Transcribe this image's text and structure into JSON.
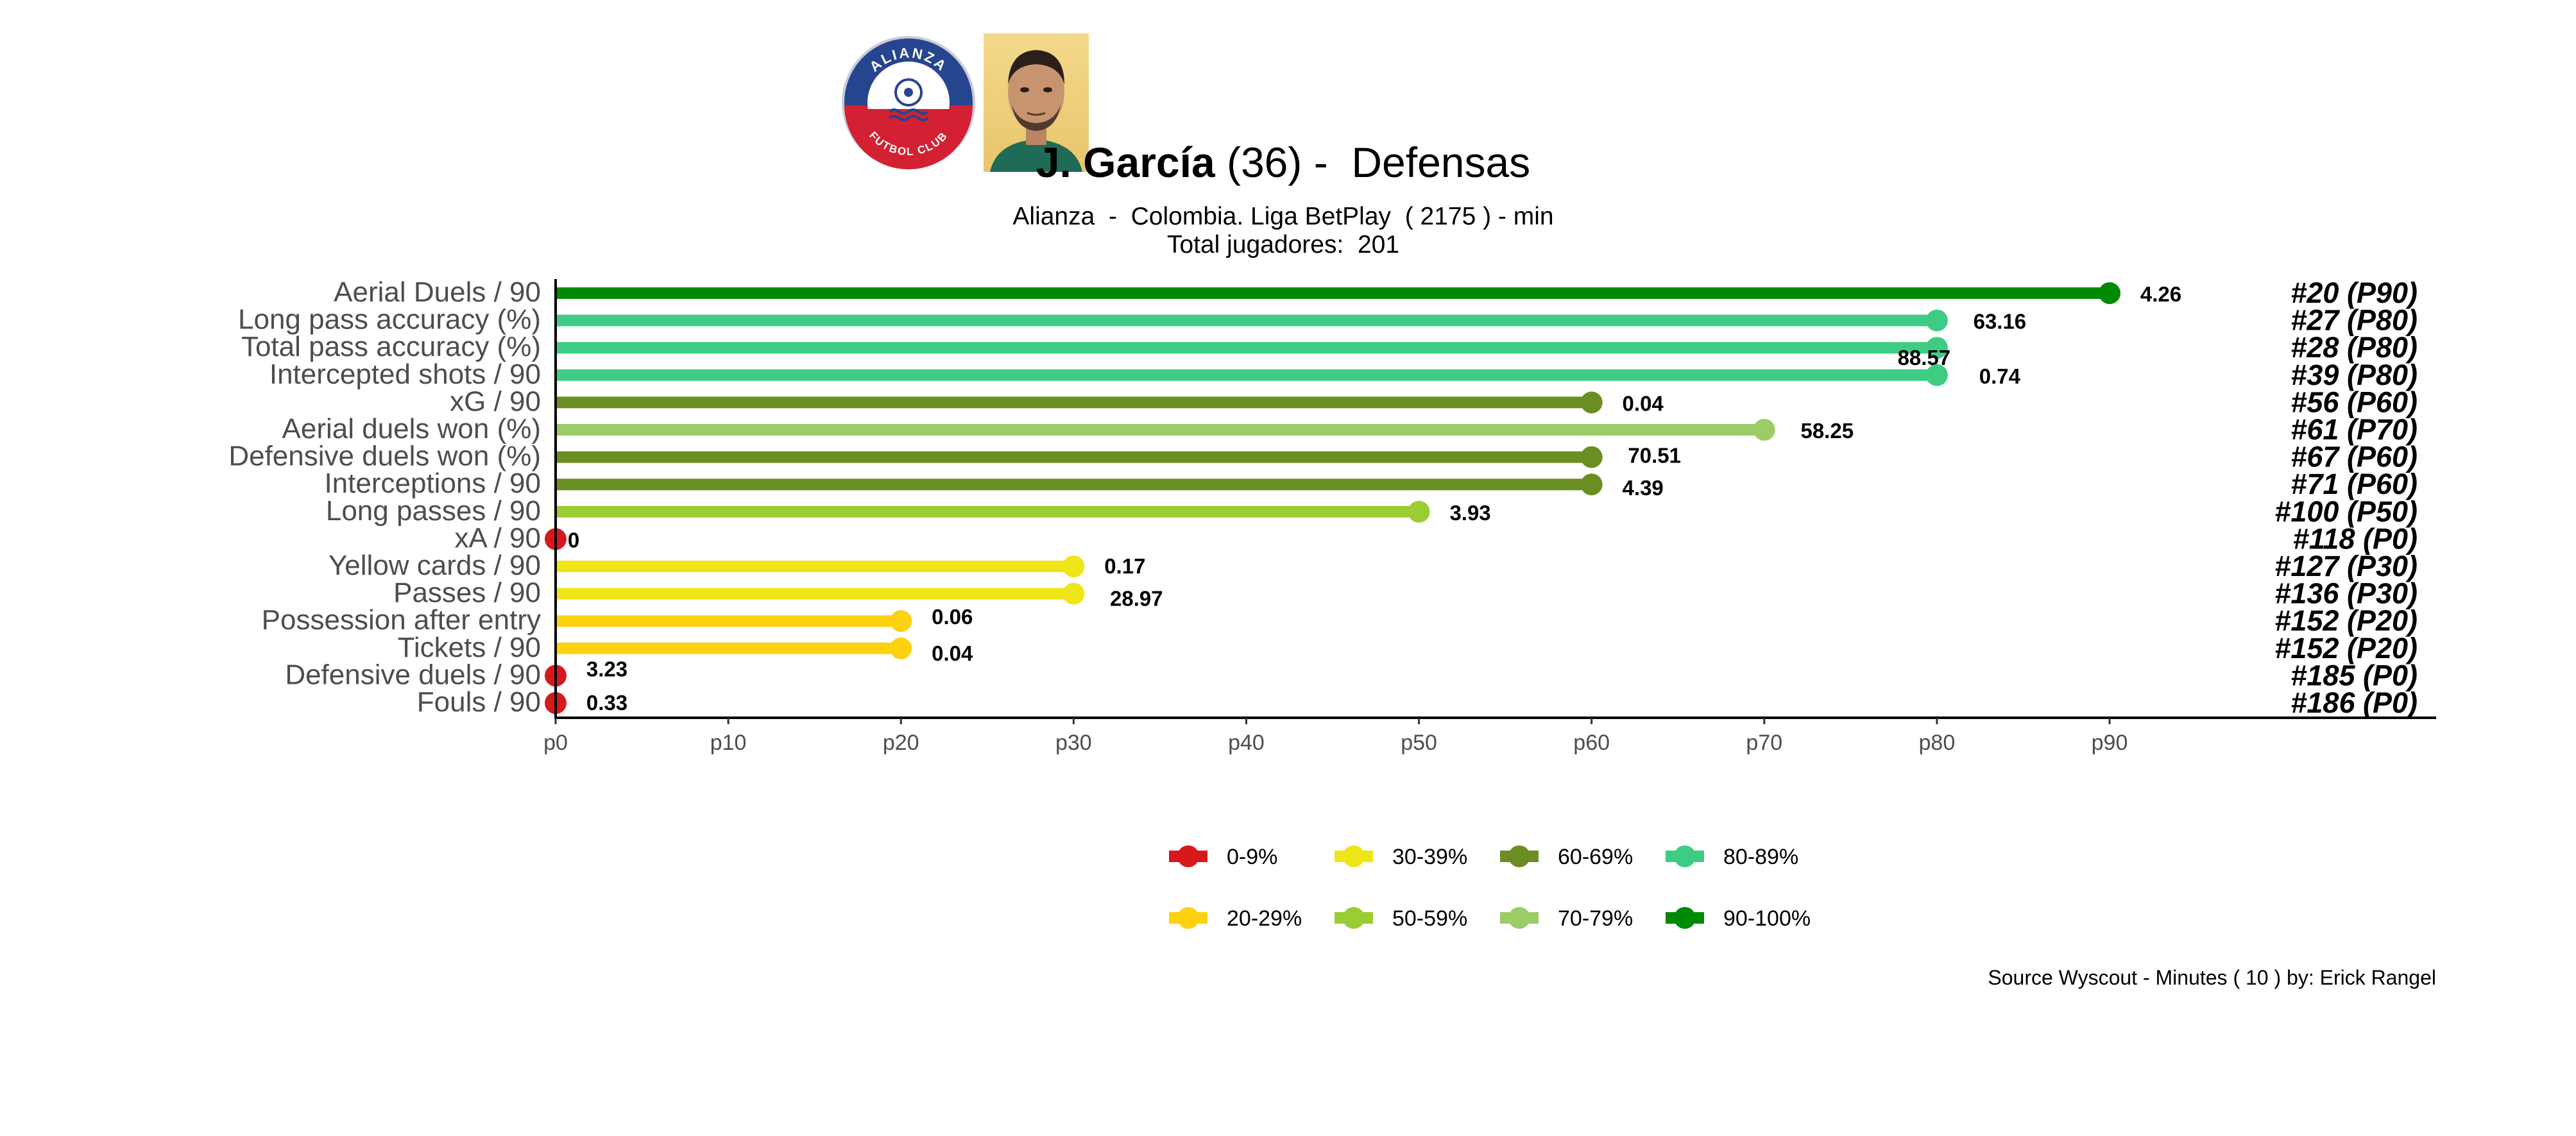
{
  "header": {
    "player_name": "J. García",
    "player_age": "(36) -  Defensas",
    "subtitle": "Alianza  -  Colombia. Liga BetPlay  ( 2175 ) - min",
    "subtitle2": "Total jugadores:  201",
    "club_badge": {
      "icon": "club-crest-icon",
      "text_top": "ALIANZA",
      "text_bottom": "FUTBOL CLUB",
      "colors": {
        "blue": "#26458f",
        "red": "#d32032",
        "white": "#ffffff"
      }
    },
    "player_photo_icon": "player-portrait-icon"
  },
  "caption": "Source Wyscout - Minutes ( 10 ) by: Erick Rangel",
  "chart_data": {
    "type": "lollipop",
    "x_ticks": [
      "p0",
      "p10",
      "p20",
      "p30",
      "p40",
      "p50",
      "p60",
      "p70",
      "p80",
      "p90"
    ],
    "xlim": [
      0,
      90
    ],
    "grid": false,
    "legend_position": "bottom",
    "bands": [
      {
        "label": "0-9%",
        "color": "#d7191c"
      },
      {
        "label": "20-29%",
        "color": "#fdd20e"
      },
      {
        "label": "30-39%",
        "color": "#f0e617"
      },
      {
        "label": "50-59%",
        "color": "#9acd32"
      },
      {
        "label": "60-69%",
        "color": "#6b8e23"
      },
      {
        "label": "70-79%",
        "color": "#9ccc65"
      },
      {
        "label": "80-89%",
        "color": "#3ecc85"
      },
      {
        "label": "90-100%",
        "color": "#008a05"
      }
    ],
    "rows": [
      {
        "label": "Aerial Duels / 90",
        "percentile": 90,
        "value": "4.26",
        "rank": "#20 (P90)",
        "color": "#008a05"
      },
      {
        "label": "Long pass accuracy (%)",
        "percentile": 80,
        "value": "63.16",
        "rank": "#27 (P80)",
        "color": "#3ecc85"
      },
      {
        "label": "Total pass accuracy (%)",
        "percentile": 80,
        "value": "88.57",
        "rank": "#28 (P80)",
        "color": "#3ecc85"
      },
      {
        "label": "Intercepted shots / 90",
        "percentile": 80,
        "value": "0.74",
        "rank": "#39 (P80)",
        "color": "#3ecc85"
      },
      {
        "label": "xG / 90",
        "percentile": 60,
        "value": "0.04",
        "rank": "#56 (P60)",
        "color": "#6b8e23"
      },
      {
        "label": "Aerial duels won (%)",
        "percentile": 70,
        "value": "58.25",
        "rank": "#61 (P70)",
        "color": "#9ccc65"
      },
      {
        "label": "Defensive duels won (%)",
        "percentile": 60,
        "value": "70.51",
        "rank": "#67 (P60)",
        "color": "#6b8e23"
      },
      {
        "label": "Interceptions / 90",
        "percentile": 60,
        "value": "4.39",
        "rank": "#71 (P60)",
        "color": "#6b8e23"
      },
      {
        "label": "Long passes / 90",
        "percentile": 50,
        "value": "3.93",
        "rank": "#100 (P50)",
        "color": "#9acd32"
      },
      {
        "label": "xA / 90",
        "percentile": 0,
        "value": "0",
        "rank": "#118 (P0)",
        "color": "#d7191c"
      },
      {
        "label": "Yellow cards / 90",
        "percentile": 30,
        "value": "0.17",
        "rank": "#127 (P30)",
        "color": "#f0e617"
      },
      {
        "label": "Passes / 90",
        "percentile": 30,
        "value": "28.97",
        "rank": "#136 (P30)",
        "color": "#f0e617"
      },
      {
        "label": "Possession after entry",
        "percentile": 20,
        "value": "0.06",
        "rank": "#152 (P20)",
        "color": "#fdd20e"
      },
      {
        "label": "Tickets / 90",
        "percentile": 20,
        "value": "0.04",
        "rank": "#152 (P20)",
        "color": "#fdd20e"
      },
      {
        "label": "Defensive duels / 90",
        "percentile": 0,
        "value": "3.23",
        "rank": "#185 (P0)",
        "color": "#d7191c"
      },
      {
        "label": "Fouls / 90",
        "percentile": 0,
        "value": "0.33",
        "rank": "#186 (P0)",
        "color": "#d7191c"
      }
    ]
  }
}
